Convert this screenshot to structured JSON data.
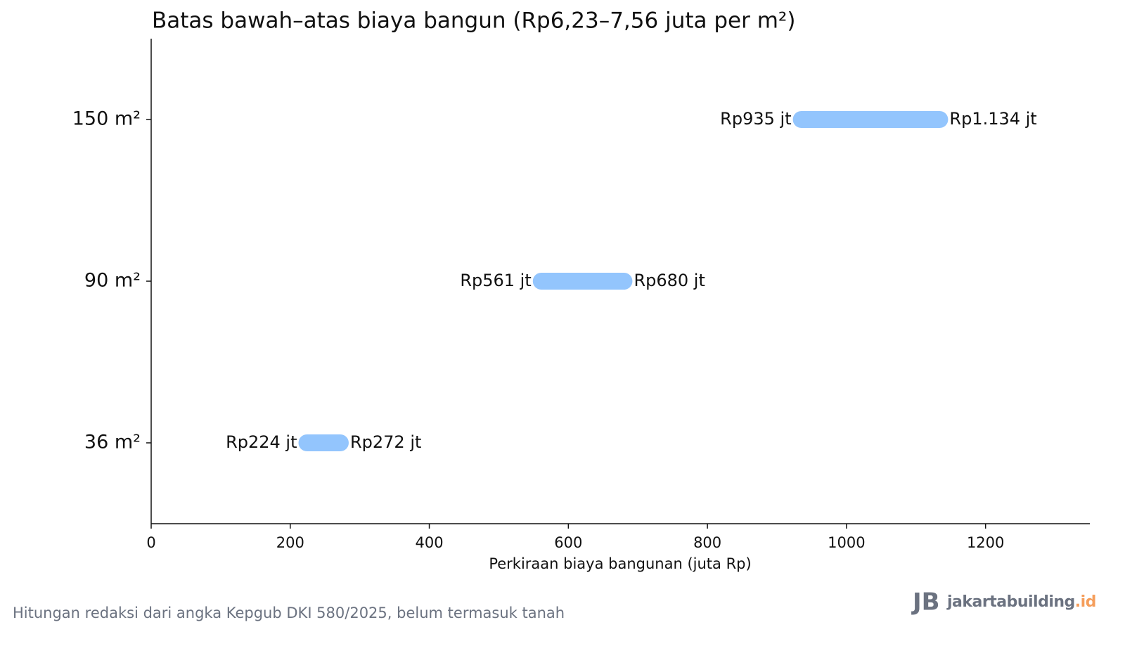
{
  "chart_data": {
    "type": "range",
    "title": "Batas bawah–atas biaya bangun (Rp6,23–7,56 juta per m²)",
    "x_label": "Perkiraan biaya bangunan (juta Rp)",
    "categories": [
      "36 m²",
      "90 m²",
      "150 m²"
    ],
    "start": [
      224,
      561,
      935
    ],
    "start_labels": [
      "Rp224 jt",
      "Rp561 jt",
      "Rp935 jt"
    ],
    "end": [
      272,
      680,
      1134
    ],
    "end_labels": [
      "Rp272 jt",
      "Rp680 jt",
      "Rp1.134 jt"
    ],
    "color": "#93c5fd",
    "xlim": [
      0,
      1350
    ],
    "xticks": [
      0,
      200,
      400,
      600,
      800,
      1000,
      1200
    ]
  },
  "footnote": "Hitungan redaksi dari angka Kepgub DKI 580/2025, belum termasuk tanah",
  "logo": {
    "text": "jakartabuilding",
    "suffix": ".id"
  }
}
